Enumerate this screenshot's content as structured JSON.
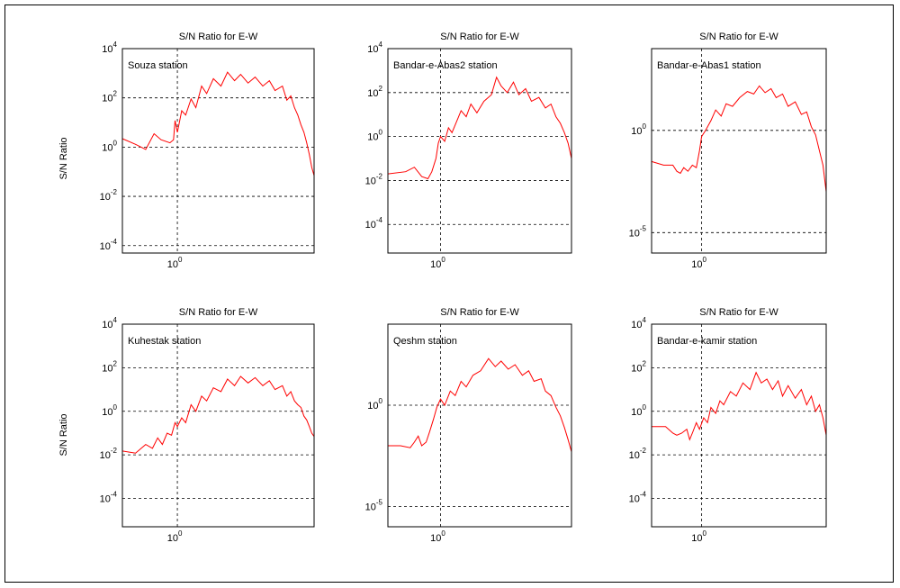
{
  "figure": {
    "ylabel_row1": "S/N Ratio",
    "ylabel_row2": "S/N Ratio"
  },
  "chart_data": [
    {
      "type": "line",
      "title": "S/N  Ratio for E-W",
      "annotation": "Souza station",
      "ylabel": "S/N Ratio",
      "x_scale": "log",
      "y_scale": "log",
      "xlim": [
        0.3,
        20
      ],
      "ylim": [
        5e-05,
        10000
      ],
      "grid": true,
      "x_ticks": [
        {
          "value": 1,
          "base": "10",
          "exp": "0"
        }
      ],
      "y_ticks": [
        {
          "value": 0.0001,
          "base": "10",
          "exp": "-4"
        },
        {
          "value": 0.01,
          "base": "10",
          "exp": "-2"
        },
        {
          "value": 1,
          "base": "10",
          "exp": "0"
        },
        {
          "value": 100,
          "base": "10",
          "exp": "2"
        },
        {
          "value": 10000,
          "base": "10",
          "exp": "4"
        }
      ],
      "series": [
        {
          "color": "#ff0000",
          "points": [
            [
              0.3,
              2.2
            ],
            [
              0.4,
              1.3
            ],
            [
              0.5,
              0.8
            ],
            [
              0.6,
              3.5
            ],
            [
              0.7,
              2.0
            ],
            [
              0.85,
              1.5
            ],
            [
              0.92,
              2.0
            ],
            [
              0.95,
              12
            ],
            [
              1.0,
              4
            ],
            [
              1.1,
              30
            ],
            [
              1.2,
              20
            ],
            [
              1.35,
              90
            ],
            [
              1.5,
              40
            ],
            [
              1.7,
              300
            ],
            [
              1.9,
              150
            ],
            [
              2.2,
              600
            ],
            [
              2.6,
              300
            ],
            [
              3.0,
              1100
            ],
            [
              3.5,
              500
            ],
            [
              4.0,
              900
            ],
            [
              4.7,
              400
            ],
            [
              5.5,
              700
            ],
            [
              6.5,
              300
            ],
            [
              7.5,
              500
            ],
            [
              8.5,
              200
            ],
            [
              10,
              300
            ],
            [
              11,
              80
            ],
            [
              12,
              120
            ],
            [
              13,
              40
            ],
            [
              14,
              20
            ],
            [
              15,
              8
            ],
            [
              16,
              4
            ],
            [
              17,
              1.5
            ],
            [
              18,
              0.5
            ],
            [
              19,
              0.15
            ],
            [
              20,
              0.07
            ]
          ]
        }
      ]
    },
    {
      "type": "line",
      "title": "S/N  Ratio for E-W",
      "annotation": "Bandar-e-Abas2 station",
      "ylabel": "",
      "x_scale": "log",
      "y_scale": "log",
      "xlim": [
        0.3,
        20
      ],
      "ylim": [
        5e-06,
        10000
      ],
      "grid": true,
      "x_ticks": [
        {
          "value": 1,
          "base": "10",
          "exp": "0"
        }
      ],
      "y_ticks": [
        {
          "value": 0.0001,
          "base": "10",
          "exp": "-4"
        },
        {
          "value": 0.01,
          "base": "10",
          "exp": "-2"
        },
        {
          "value": 1,
          "base": "10",
          "exp": "0"
        },
        {
          "value": 100,
          "base": "10",
          "exp": "2"
        },
        {
          "value": 10000,
          "base": "10",
          "exp": "4"
        }
      ],
      "series": [
        {
          "color": "#ff0000",
          "points": [
            [
              0.3,
              0.02
            ],
            [
              0.45,
              0.025
            ],
            [
              0.55,
              0.04
            ],
            [
              0.65,
              0.015
            ],
            [
              0.75,
              0.012
            ],
            [
              0.82,
              0.025
            ],
            [
              0.9,
              0.1
            ],
            [
              0.95,
              0.5
            ],
            [
              1.0,
              1.0
            ],
            [
              1.1,
              0.6
            ],
            [
              1.2,
              2.5
            ],
            [
              1.3,
              1.5
            ],
            [
              1.45,
              5
            ],
            [
              1.6,
              15
            ],
            [
              1.8,
              8
            ],
            [
              2.0,
              30
            ],
            [
              2.3,
              12
            ],
            [
              2.7,
              40
            ],
            [
              3.2,
              80
            ],
            [
              3.6,
              500
            ],
            [
              4.0,
              200
            ],
            [
              4.6,
              100
            ],
            [
              5.3,
              300
            ],
            [
              6.0,
              80
            ],
            [
              7.0,
              150
            ],
            [
              8.0,
              40
            ],
            [
              9.5,
              60
            ],
            [
              11,
              20
            ],
            [
              12.5,
              30
            ],
            [
              14,
              8
            ],
            [
              15.5,
              4
            ],
            [
              17,
              1.5
            ],
            [
              18.5,
              0.5
            ],
            [
              20,
              0.1
            ]
          ]
        }
      ]
    },
    {
      "type": "line",
      "title": "S/N  Ratio for E-W",
      "annotation": "Bandar-e-Abas1 station",
      "ylabel": "",
      "x_scale": "log",
      "y_scale": "log",
      "xlim": [
        0.3,
        20
      ],
      "ylim": [
        1e-06,
        10000
      ],
      "grid": true,
      "x_ticks": [
        {
          "value": 1,
          "base": "10",
          "exp": "0"
        }
      ],
      "y_ticks": [
        {
          "value": 1e-05,
          "base": "10",
          "exp": "-5"
        },
        {
          "value": 1,
          "base": "10",
          "exp": "0"
        }
      ],
      "series": [
        {
          "color": "#ff0000",
          "points": [
            [
              0.3,
              0.03
            ],
            [
              0.4,
              0.02
            ],
            [
              0.5,
              0.02
            ],
            [
              0.55,
              0.01
            ],
            [
              0.6,
              0.008
            ],
            [
              0.65,
              0.015
            ],
            [
              0.72,
              0.01
            ],
            [
              0.8,
              0.02
            ],
            [
              0.88,
              0.015
            ],
            [
              0.95,
              0.1
            ],
            [
              1.0,
              0.5
            ],
            [
              1.1,
              1.0
            ],
            [
              1.25,
              3
            ],
            [
              1.4,
              10
            ],
            [
              1.6,
              5
            ],
            [
              1.8,
              20
            ],
            [
              2.1,
              15
            ],
            [
              2.5,
              40
            ],
            [
              3.0,
              80
            ],
            [
              3.5,
              60
            ],
            [
              4.0,
              150
            ],
            [
              4.6,
              70
            ],
            [
              5.3,
              110
            ],
            [
              6.0,
              40
            ],
            [
              7.0,
              60
            ],
            [
              8.0,
              15
            ],
            [
              9.5,
              25
            ],
            [
              11,
              6
            ],
            [
              12.5,
              8
            ],
            [
              14,
              1.5
            ],
            [
              15.5,
              0.6
            ],
            [
              17,
              0.1
            ],
            [
              18.5,
              0.02
            ],
            [
              20,
              0.001
            ]
          ]
        }
      ]
    },
    {
      "type": "line",
      "title": "S/N  Ratio for E-W",
      "annotation": "Kuhestak station",
      "ylabel": "S/N Ratio",
      "x_scale": "log",
      "y_scale": "log",
      "xlim": [
        0.3,
        20
      ],
      "ylim": [
        5e-06,
        10000
      ],
      "grid": true,
      "x_ticks": [
        {
          "value": 1,
          "base": "10",
          "exp": "0"
        }
      ],
      "y_ticks": [
        {
          "value": 0.0001,
          "base": "10",
          "exp": "-4"
        },
        {
          "value": 0.01,
          "base": "10",
          "exp": "-2"
        },
        {
          "value": 1,
          "base": "10",
          "exp": "0"
        },
        {
          "value": 100,
          "base": "10",
          "exp": "2"
        },
        {
          "value": 10000,
          "base": "10",
          "exp": "4"
        }
      ],
      "series": [
        {
          "color": "#ff0000",
          "points": [
            [
              0.3,
              0.015
            ],
            [
              0.4,
              0.012
            ],
            [
              0.5,
              0.03
            ],
            [
              0.58,
              0.02
            ],
            [
              0.65,
              0.06
            ],
            [
              0.72,
              0.03
            ],
            [
              0.8,
              0.1
            ],
            [
              0.88,
              0.08
            ],
            [
              0.95,
              0.3
            ],
            [
              1.0,
              0.2
            ],
            [
              1.1,
              0.5
            ],
            [
              1.2,
              0.3
            ],
            [
              1.35,
              2
            ],
            [
              1.5,
              1
            ],
            [
              1.7,
              5
            ],
            [
              1.9,
              3
            ],
            [
              2.2,
              12
            ],
            [
              2.6,
              8
            ],
            [
              3.0,
              30
            ],
            [
              3.5,
              15
            ],
            [
              4.0,
              40
            ],
            [
              4.7,
              20
            ],
            [
              5.5,
              35
            ],
            [
              6.5,
              15
            ],
            [
              7.5,
              25
            ],
            [
              8.5,
              10
            ],
            [
              10,
              15
            ],
            [
              11,
              5
            ],
            [
              12,
              8
            ],
            [
              13,
              3
            ],
            [
              14,
              2
            ],
            [
              15,
              1.5
            ],
            [
              16,
              0.6
            ],
            [
              17,
              0.4
            ],
            [
              18,
              0.2
            ],
            [
              19,
              0.1
            ],
            [
              20,
              0.07
            ]
          ]
        }
      ]
    },
    {
      "type": "line",
      "title": "S/N  Ratio for E-W",
      "annotation": "Qeshm station",
      "ylabel": "",
      "x_scale": "log",
      "y_scale": "log",
      "xlim": [
        0.3,
        20
      ],
      "ylim": [
        1e-06,
        10000
      ],
      "grid": true,
      "x_ticks": [
        {
          "value": 1,
          "base": "10",
          "exp": "0"
        }
      ],
      "y_ticks": [
        {
          "value": 1e-05,
          "base": "10",
          "exp": "-5"
        },
        {
          "value": 1,
          "base": "10",
          "exp": "0"
        }
      ],
      "series": [
        {
          "color": "#ff0000",
          "points": [
            [
              0.3,
              0.01
            ],
            [
              0.4,
              0.01
            ],
            [
              0.5,
              0.008
            ],
            [
              0.55,
              0.015
            ],
            [
              0.6,
              0.03
            ],
            [
              0.65,
              0.01
            ],
            [
              0.72,
              0.015
            ],
            [
              0.78,
              0.05
            ],
            [
              0.85,
              0.2
            ],
            [
              0.92,
              0.8
            ],
            [
              1.0,
              2
            ],
            [
              1.1,
              1
            ],
            [
              1.25,
              5
            ],
            [
              1.4,
              3
            ],
            [
              1.6,
              15
            ],
            [
              1.8,
              8
            ],
            [
              2.1,
              30
            ],
            [
              2.5,
              50
            ],
            [
              3.0,
              200
            ],
            [
              3.5,
              80
            ],
            [
              4.0,
              150
            ],
            [
              4.7,
              60
            ],
            [
              5.5,
              100
            ],
            [
              6.5,
              30
            ],
            [
              7.5,
              50
            ],
            [
              8.5,
              15
            ],
            [
              10,
              20
            ],
            [
              11,
              5
            ],
            [
              12.5,
              3
            ],
            [
              14,
              0.8
            ],
            [
              15.5,
              0.3
            ],
            [
              17,
              0.08
            ],
            [
              18.5,
              0.02
            ],
            [
              20,
              0.005
            ]
          ]
        }
      ]
    },
    {
      "type": "line",
      "title": "S/N  Ratio for E-W",
      "annotation": "Bandar-e-kamir station",
      "ylabel": "",
      "x_scale": "log",
      "y_scale": "log",
      "xlim": [
        0.3,
        20
      ],
      "ylim": [
        5e-06,
        10000
      ],
      "grid": true,
      "x_ticks": [
        {
          "value": 1,
          "base": "10",
          "exp": "0"
        }
      ],
      "y_ticks": [
        {
          "value": 0.0001,
          "base": "10",
          "exp": "-4"
        },
        {
          "value": 0.01,
          "base": "10",
          "exp": "-2"
        },
        {
          "value": 1,
          "base": "10",
          "exp": "0"
        },
        {
          "value": 100,
          "base": "10",
          "exp": "2"
        },
        {
          "value": 10000,
          "base": "10",
          "exp": "4"
        }
      ],
      "series": [
        {
          "color": "#ff0000",
          "points": [
            [
              0.3,
              0.2
            ],
            [
              0.42,
              0.2
            ],
            [
              0.5,
              0.1
            ],
            [
              0.55,
              0.08
            ],
            [
              0.62,
              0.1
            ],
            [
              0.7,
              0.15
            ],
            [
              0.75,
              0.05
            ],
            [
              0.8,
              0.1
            ],
            [
              0.88,
              0.3
            ],
            [
              0.95,
              0.15
            ],
            [
              1.05,
              0.5
            ],
            [
              1.15,
              0.3
            ],
            [
              1.25,
              1.5
            ],
            [
              1.4,
              0.8
            ],
            [
              1.55,
              3
            ],
            [
              1.7,
              2
            ],
            [
              2.0,
              8
            ],
            [
              2.3,
              5
            ],
            [
              2.7,
              20
            ],
            [
              3.2,
              10
            ],
            [
              3.7,
              60
            ],
            [
              4.2,
              20
            ],
            [
              4.8,
              30
            ],
            [
              5.5,
              10
            ],
            [
              6.3,
              25
            ],
            [
              7.0,
              5
            ],
            [
              8.0,
              15
            ],
            [
              9.5,
              4
            ],
            [
              11,
              10
            ],
            [
              12.5,
              2
            ],
            [
              14,
              5
            ],
            [
              15.5,
              1
            ],
            [
              17,
              2
            ],
            [
              18.5,
              0.5
            ],
            [
              20,
              0.08
            ]
          ]
        }
      ]
    }
  ]
}
